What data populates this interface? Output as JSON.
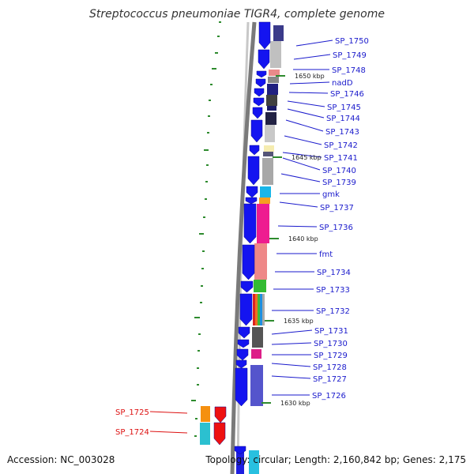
{
  "title": "Streptococcus pneumoniae TIGR4, complete genome",
  "footer": {
    "accession": "Accession: NC_003028",
    "summary": "Topology: circular; Length: 2,160,842 bp; Genes: 2,175"
  },
  "colors": {
    "forward_arrow": "#1414f0",
    "reverse_arrow": "#2233dd",
    "label_blue": "#1a1acc",
    "label_red": "#dd1111",
    "backbone": "#777777",
    "outer_ring": "#bbbbbb",
    "gc_tick": "#2e8b2e"
  },
  "position_ticks": [
    "1650 kbp",
    "1645 kbp",
    "1640 kbp",
    "1635 kbp",
    "1630 kbp"
  ],
  "gene_labels_right": [
    "SP_1750",
    "SP_1749",
    "SP_1748",
    "nadD",
    "SP_1746",
    "SP_1745",
    "SP_1744",
    "SP_1743",
    "SP_1742",
    "SP_1741",
    "SP_1740",
    "SP_1739",
    "gmk",
    "SP_1737",
    "SP_1736",
    "fmt",
    "SP_1734",
    "SP_1733",
    "SP_1732",
    "SP_1731",
    "SP_1730",
    "SP_1729",
    "SP_1728",
    "SP_1727",
    "SP_1726"
  ],
  "gene_labels_left": [
    "SP_1725",
    "SP_1724"
  ]
}
